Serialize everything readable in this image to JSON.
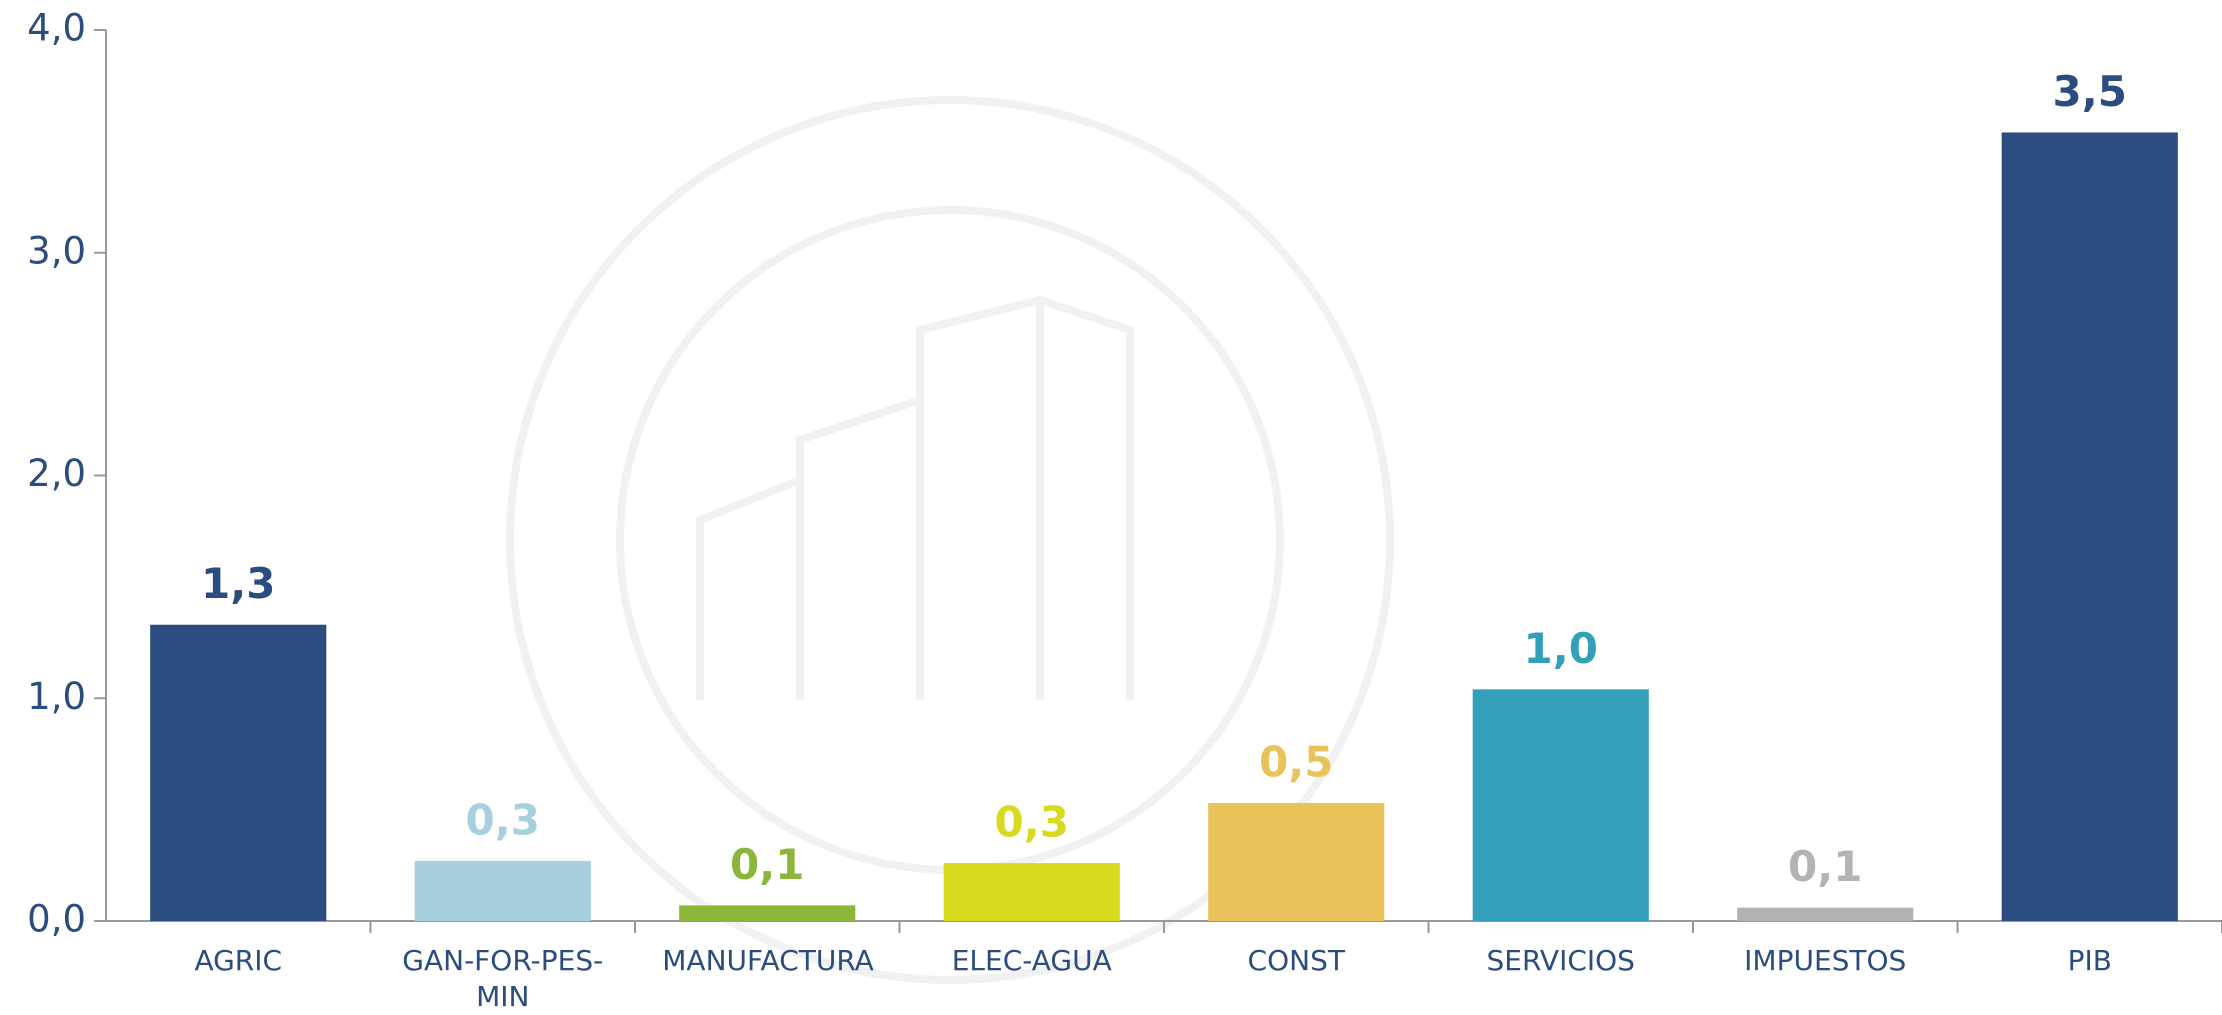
{
  "chart_data": {
    "type": "bar",
    "categories": [
      "AGRIC",
      "GAN-FOR-PES-MIN",
      "MANUFACTURA",
      "ELEC-AGUA",
      "CONST",
      "SERVICIOS",
      "IMPUESTOS",
      "PIB"
    ],
    "values": [
      1.33,
      0.27,
      0.07,
      0.26,
      0.53,
      1.04,
      0.06,
      3.54
    ],
    "value_labels": [
      "1,3",
      "0,3",
      "0,1",
      "0,3",
      "0,5",
      "1,0",
      "0,1",
      "3,5"
    ],
    "colors": [
      "#2b4c7e",
      "#a8cfdc",
      "#8db53c",
      "#d7da1d",
      "#e8c25a",
      "#349fbb",
      "#b3b3b3",
      "#2b4c7e"
    ],
    "ylim": [
      0,
      4
    ],
    "yticks": [
      {
        "value": 0,
        "label": "0,0"
      },
      {
        "value": 1,
        "label": "1,0"
      },
      {
        "value": 2,
        "label": "2,0"
      },
      {
        "value": 3,
        "label": "3,0"
      },
      {
        "value": 4,
        "label": "4,0"
      }
    ],
    "grid": false
  }
}
